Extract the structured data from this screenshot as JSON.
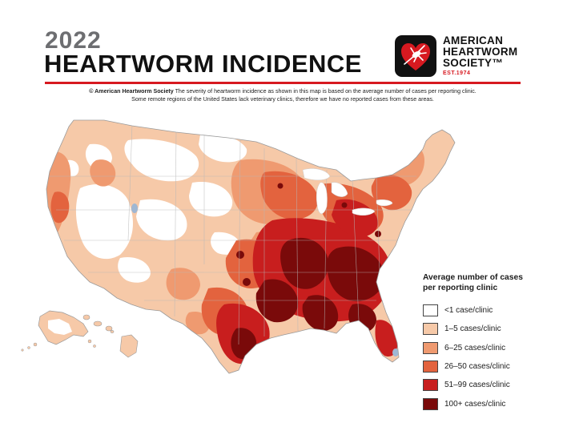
{
  "header": {
    "year": "2022",
    "title": "HEARTWORM INCIDENCE"
  },
  "logo": {
    "org_lines": [
      "AMERICAN",
      "HEARTWORM",
      "SOCIETY™"
    ],
    "established": "EST.1974",
    "icon": "heart-mosquito-icon"
  },
  "note": {
    "copyright": "© American Heartworm Society",
    "line1": " The severity of heartworm incidence as shown in this map is based on the average number of cases per reporting clinic.",
    "line2": "Some remote regions of the United States lack veterinary clinics, therefore we have no reported cases from these areas."
  },
  "map": {
    "subject": "United States heartworm incidence by region",
    "regions_shown": [
      "Contiguous United States",
      "Alaska",
      "Hawaii"
    ]
  },
  "legend": {
    "title_line1": "Average number of cases",
    "title_line2": "per reporting clinic",
    "items": [
      {
        "label": "<1 case/clinic",
        "color": "#ffffff"
      },
      {
        "label": "1–5 cases/clinic",
        "color": "#f6c9a8"
      },
      {
        "label": "6–25 cases/clinic",
        "color": "#ef9a70"
      },
      {
        "label": "26–50 cases/clinic",
        "color": "#e3633e"
      },
      {
        "label": "51–99 cases/clinic",
        "color": "#c81e1e"
      },
      {
        "label": "100+ cases/clinic",
        "color": "#7a0a0a"
      }
    ]
  },
  "colors": {
    "accent_red": "#d71920",
    "title_gray": "#6d6e71"
  }
}
